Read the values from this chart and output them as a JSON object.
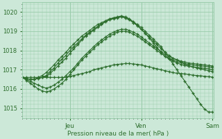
{
  "bg_color": "#cce8d8",
  "grid_color": "#99ccaa",
  "line_color": "#2d6e2d",
  "ylabel": "Pression niveau de la mer( hPa )",
  "ylim": [
    1014.5,
    1020.5
  ],
  "yticks": [
    1015,
    1016,
    1017,
    1018,
    1019,
    1020
  ],
  "n_points": 49,
  "t_jeu": 12,
  "t_ven": 30,
  "t_sam": 48,
  "series": [
    [
      1016.6,
      1016.55,
      1016.5,
      1016.5,
      1016.55,
      1016.6,
      1016.65,
      1016.8,
      1017.0,
      1017.2,
      1017.4,
      1017.6,
      1017.85,
      1018.1,
      1018.3,
      1018.55,
      1018.75,
      1018.9,
      1019.05,
      1019.2,
      1019.35,
      1019.5,
      1019.6,
      1019.7,
      1019.75,
      1019.8,
      1019.75,
      1019.65,
      1019.5,
      1019.35,
      1019.2,
      1019.0,
      1018.8,
      1018.6,
      1018.4,
      1018.2,
      1017.9,
      1017.6,
      1017.3,
      1017.0,
      1016.7,
      1016.4,
      1016.1,
      1015.8,
      1015.5,
      1015.2,
      1014.95,
      1014.8,
      1014.8
    ],
    [
      1016.6,
      1016.55,
      1016.5,
      1016.5,
      1016.55,
      1016.6,
      1016.7,
      1016.9,
      1017.1,
      1017.35,
      1017.55,
      1017.75,
      1018.0,
      1018.2,
      1018.4,
      1018.6,
      1018.8,
      1018.95,
      1019.1,
      1019.25,
      1019.4,
      1019.5,
      1019.6,
      1019.65,
      1019.7,
      1019.75,
      1019.7,
      1019.6,
      1019.45,
      1019.3,
      1019.1,
      1018.9,
      1018.7,
      1018.5,
      1018.3,
      1018.1,
      1017.9,
      1017.75,
      1017.6,
      1017.5,
      1017.4,
      1017.3,
      1017.2,
      1017.15,
      1017.1,
      1017.05,
      1017.0,
      1016.95,
      1016.9
    ],
    [
      1016.6,
      1016.55,
      1016.5,
      1016.5,
      1016.6,
      1016.7,
      1016.85,
      1017.05,
      1017.25,
      1017.5,
      1017.7,
      1017.9,
      1018.15,
      1018.35,
      1018.55,
      1018.75,
      1018.9,
      1019.05,
      1019.2,
      1019.35,
      1019.45,
      1019.55,
      1019.65,
      1019.7,
      1019.72,
      1019.75,
      1019.7,
      1019.6,
      1019.45,
      1019.3,
      1019.1,
      1018.9,
      1018.65,
      1018.4,
      1018.15,
      1017.9,
      1017.7,
      1017.55,
      1017.45,
      1017.35,
      1017.28,
      1017.22,
      1017.18,
      1017.15,
      1017.12,
      1017.1,
      1017.08,
      1017.05,
      1017.0
    ],
    [
      1016.6,
      1016.5,
      1016.4,
      1016.3,
      1016.2,
      1016.1,
      1016.05,
      1016.1,
      1016.2,
      1016.35,
      1016.5,
      1016.7,
      1016.9,
      1017.1,
      1017.35,
      1017.6,
      1017.8,
      1018.0,
      1018.2,
      1018.4,
      1018.55,
      1018.7,
      1018.85,
      1018.95,
      1019.05,
      1019.1,
      1019.1,
      1019.05,
      1018.95,
      1018.85,
      1018.7,
      1018.55,
      1018.4,
      1018.25,
      1018.1,
      1017.95,
      1017.8,
      1017.7,
      1017.6,
      1017.52,
      1017.45,
      1017.4,
      1017.35,
      1017.32,
      1017.3,
      1017.28,
      1017.25,
      1017.22,
      1017.2
    ],
    [
      1016.6,
      1016.45,
      1016.3,
      1016.15,
      1016.0,
      1015.9,
      1015.85,
      1015.9,
      1016.0,
      1016.15,
      1016.3,
      1016.5,
      1016.75,
      1017.0,
      1017.25,
      1017.5,
      1017.7,
      1017.9,
      1018.1,
      1018.3,
      1018.45,
      1018.6,
      1018.75,
      1018.85,
      1018.95,
      1019.0,
      1019.0,
      1018.95,
      1018.85,
      1018.75,
      1018.6,
      1018.45,
      1018.3,
      1018.15,
      1018.0,
      1017.85,
      1017.7,
      1017.6,
      1017.5,
      1017.42,
      1017.36,
      1017.32,
      1017.28,
      1017.25,
      1017.22,
      1017.2,
      1017.18,
      1017.15,
      1017.12
    ],
    [
      1016.6,
      1016.6,
      1016.6,
      1016.6,
      1016.6,
      1016.6,
      1016.6,
      1016.6,
      1016.6,
      1016.6,
      1016.6,
      1016.6,
      1016.65,
      1016.7,
      1016.75,
      1016.8,
      1016.85,
      1016.9,
      1017.0,
      1017.05,
      1017.1,
      1017.15,
      1017.2,
      1017.25,
      1017.28,
      1017.3,
      1017.32,
      1017.32,
      1017.3,
      1017.28,
      1017.25,
      1017.2,
      1017.15,
      1017.1,
      1017.05,
      1017.0,
      1016.95,
      1016.9,
      1016.85,
      1016.82,
      1016.8,
      1016.78,
      1016.75,
      1016.72,
      1016.7,
      1016.68,
      1016.66,
      1016.64,
      1016.62
    ]
  ]
}
